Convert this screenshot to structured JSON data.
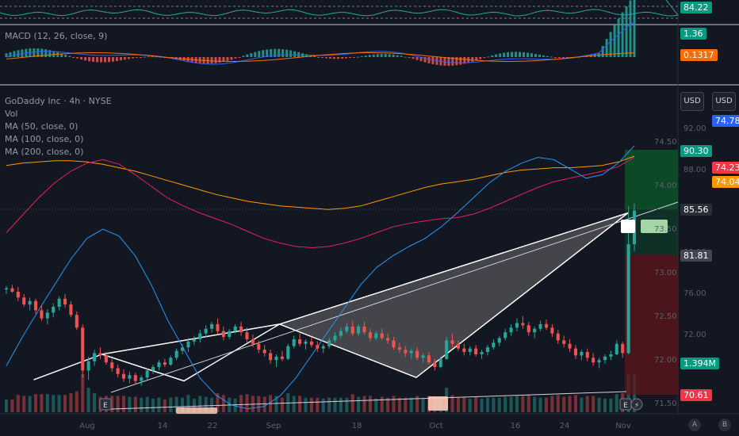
{
  "panes": {
    "rsi": {
      "value_label": "84.22"
    },
    "macd": {
      "title": "MACD (12, 26, close, 9)",
      "macd_label": "1.36",
      "signal_label": "0.1317"
    },
    "main": {
      "legend": [
        "GoDaddy Inc · 4h · NYSE",
        "Vol",
        "MA (50, close, 0)",
        "MA (100, close, 0)",
        "MA (200, close, 0)"
      ]
    }
  },
  "currency_buttons": [
    "USD",
    "USD"
  ],
  "right_axis_labels": [
    "92.00",
    "88.00",
    "84.00",
    "80.00",
    "76.00",
    "72.00"
  ],
  "left_axis_labels": [
    "74.50",
    "74.00",
    "73.50",
    "73.00",
    "72.50",
    "72.00",
    "71.50"
  ],
  "price_tags": [
    {
      "value": "74.78",
      "color": "#2962ff"
    },
    {
      "value": "90.30",
      "color": "#089981"
    },
    {
      "value": "74.23",
      "color": "#f23645"
    },
    {
      "value": "74.04",
      "color": "#ff9800"
    },
    {
      "value": "85.56",
      "color": "#2a2e39"
    },
    {
      "value": "81.81",
      "color": "#434651"
    },
    {
      "value": "1.394M",
      "color": "#089981"
    },
    {
      "value": "70.61",
      "color": "#f23645"
    }
  ],
  "x_axis_labels": [
    "Aug",
    "14",
    "22",
    "Sep",
    "18",
    "Oct",
    "16",
    "24",
    "Nov"
  ],
  "corner_buttons": [
    "A",
    "B"
  ],
  "colors": {
    "up": "#26a69a",
    "down": "#ef5350",
    "ma50": "#2196f3",
    "ma100": "#e91e63",
    "ma200": "#ff9800",
    "background": "#131722"
  },
  "chart_data": {
    "type": "candlestick",
    "symbol": "GoDaddy Inc",
    "timeframe": "4h",
    "exchange": "NYSE",
    "price_axis_range": [
      68,
      94
    ],
    "candles": [
      [
        78.6,
        78.9,
        78.2,
        78.7
      ],
      [
        78.7,
        79.0,
        78.3,
        78.4
      ],
      [
        78.4,
        78.8,
        77.6,
        77.9
      ],
      [
        77.9,
        78.2,
        77.1,
        77.3
      ],
      [
        77.3,
        77.9,
        76.8,
        77.6
      ],
      [
        77.6,
        77.8,
        76.5,
        76.8
      ],
      [
        76.8,
        77.2,
        75.9,
        76.1
      ],
      [
        76.1,
        76.9,
        75.6,
        76.6
      ],
      [
        76.6,
        77.4,
        76.2,
        77.1
      ],
      [
        77.1,
        78.0,
        76.8,
        77.8
      ],
      [
        77.8,
        78.2,
        77.0,
        77.3
      ],
      [
        77.3,
        77.6,
        76.2,
        76.4
      ],
      [
        76.4,
        76.7,
        75.1,
        75.3
      ],
      [
        75.3,
        75.6,
        71.0,
        71.6
      ],
      [
        71.6,
        72.8,
        70.8,
        72.4
      ],
      [
        72.4,
        73.4,
        72.0,
        73.1
      ],
      [
        73.1,
        73.6,
        72.6,
        72.9
      ],
      [
        72.9,
        73.2,
        72.1,
        72.3
      ],
      [
        72.3,
        72.6,
        71.5,
        71.8
      ],
      [
        71.8,
        72.1,
        71.0,
        71.3
      ],
      [
        71.3,
        71.7,
        70.6,
        70.9
      ],
      [
        70.9,
        71.5,
        70.5,
        71.2
      ],
      [
        71.2,
        71.4,
        70.4,
        70.7
      ],
      [
        70.7,
        71.2,
        70.3,
        71.0
      ],
      [
        71.0,
        71.8,
        70.8,
        71.6
      ],
      [
        71.6,
        72.1,
        71.3,
        71.9
      ],
      [
        71.9,
        72.5,
        71.6,
        72.3
      ],
      [
        72.3,
        72.6,
        71.9,
        72.1
      ],
      [
        72.1,
        72.9,
        72.0,
        72.7
      ],
      [
        72.7,
        73.5,
        72.5,
        73.3
      ],
      [
        73.3,
        73.9,
        73.0,
        73.6
      ],
      [
        73.6,
        74.4,
        73.2,
        74.1
      ],
      [
        74.1,
        74.6,
        73.8,
        74.3
      ],
      [
        74.3,
        75.1,
        74.0,
        74.8
      ],
      [
        74.8,
        75.5,
        74.5,
        75.2
      ],
      [
        75.2,
        75.8,
        74.9,
        75.6
      ],
      [
        75.6,
        76.1,
        74.7,
        75.0
      ],
      [
        75.0,
        75.4,
        74.2,
        74.5
      ],
      [
        74.5,
        75.2,
        74.3,
        75.0
      ],
      [
        75.0,
        75.6,
        74.8,
        75.4
      ],
      [
        75.4,
        75.8,
        74.6,
        74.9
      ],
      [
        74.9,
        75.3,
        74.0,
        74.3
      ],
      [
        74.3,
        74.7,
        73.6,
        73.9
      ],
      [
        73.9,
        74.2,
        73.1,
        73.4
      ],
      [
        73.4,
        73.8,
        72.8,
        73.1
      ],
      [
        73.1,
        73.4,
        72.2,
        72.5
      ],
      [
        72.5,
        73.0,
        71.9,
        72.8
      ],
      [
        72.8,
        73.3,
        72.4,
        72.6
      ],
      [
        72.6,
        73.9,
        72.5,
        73.7
      ],
      [
        73.7,
        74.6,
        73.5,
        74.3
      ],
      [
        74.3,
        74.8,
        73.7,
        73.9
      ],
      [
        73.9,
        74.3,
        73.4,
        74.1
      ],
      [
        74.1,
        74.5,
        73.6,
        73.8
      ],
      [
        73.8,
        74.1,
        73.2,
        73.5
      ],
      [
        73.5,
        73.9,
        73.1,
        73.7
      ],
      [
        73.7,
        74.4,
        73.5,
        74.2
      ],
      [
        74.2,
        74.9,
        74.0,
        74.6
      ],
      [
        74.6,
        75.3,
        74.4,
        75.0
      ],
      [
        75.0,
        75.7,
        74.8,
        75.4
      ],
      [
        75.4,
        75.9,
        74.6,
        74.8
      ],
      [
        74.8,
        75.6,
        74.6,
        75.4
      ],
      [
        75.4,
        75.8,
        74.7,
        74.9
      ],
      [
        74.9,
        75.2,
        74.1,
        74.4
      ],
      [
        74.4,
        75.0,
        74.2,
        74.8
      ],
      [
        74.8,
        75.2,
        74.2,
        74.4
      ],
      [
        74.4,
        74.8,
        73.9,
        74.2
      ],
      [
        74.2,
        74.5,
        73.4,
        73.6
      ],
      [
        73.6,
        74.0,
        73.1,
        73.4
      ],
      [
        73.4,
        73.7,
        72.8,
        73.1
      ],
      [
        73.1,
        73.5,
        72.6,
        73.3
      ],
      [
        73.3,
        73.6,
        72.5,
        72.7
      ],
      [
        72.7,
        73.1,
        72.3,
        72.9
      ],
      [
        72.9,
        73.2,
        72.1,
        72.3
      ],
      [
        72.3,
        72.6,
        71.6,
        71.9
      ],
      [
        71.9,
        72.8,
        71.8,
        72.6
      ],
      [
        72.6,
        74.5,
        72.5,
        74.2
      ],
      [
        74.2,
        74.8,
        73.6,
        73.9
      ],
      [
        73.9,
        74.2,
        73.3,
        73.5
      ],
      [
        73.5,
        73.9,
        72.9,
        73.2
      ],
      [
        73.2,
        73.7,
        72.9,
        73.5
      ],
      [
        73.5,
        73.8,
        72.8,
        73.0
      ],
      [
        73.0,
        73.4,
        72.6,
        73.2
      ],
      [
        73.2,
        73.8,
        72.9,
        73.6
      ],
      [
        73.6,
        74.3,
        73.4,
        74.0
      ],
      [
        74.0,
        74.6,
        73.7,
        74.4
      ],
      [
        74.4,
        75.2,
        74.2,
        74.9
      ],
      [
        74.9,
        75.6,
        74.6,
        75.3
      ],
      [
        75.3,
        76.1,
        75.0,
        75.7
      ],
      [
        75.7,
        76.3,
        75.2,
        75.5
      ],
      [
        75.5,
        75.8,
        74.6,
        74.9
      ],
      [
        74.9,
        75.4,
        74.4,
        75.2
      ],
      [
        75.2,
        75.9,
        75.0,
        75.6
      ],
      [
        75.6,
        76.0,
        75.1,
        75.3
      ],
      [
        75.3,
        75.6,
        74.5,
        74.8
      ],
      [
        74.8,
        75.1,
        73.9,
        74.2
      ],
      [
        74.2,
        74.6,
        73.6,
        73.9
      ],
      [
        73.9,
        74.3,
        73.2,
        73.5
      ],
      [
        73.5,
        73.8,
        72.6,
        72.9
      ],
      [
        72.9,
        73.4,
        72.5,
        73.2
      ],
      [
        73.2,
        73.5,
        72.4,
        72.7
      ],
      [
        72.7,
        73.1,
        72.0,
        72.3
      ],
      [
        72.3,
        72.7,
        71.8,
        72.5
      ],
      [
        72.5,
        73.0,
        72.2,
        72.8
      ],
      [
        72.8,
        73.3,
        72.5,
        73.0
      ],
      [
        73.0,
        74.2,
        72.9,
        73.9
      ],
      [
        73.9,
        74.1,
        72.7,
        73.1
      ],
      [
        73.1,
        85.8,
        73.0,
        82.5
      ],
      [
        82.5,
        86.0,
        81.9,
        85.4
      ]
    ],
    "ma50": [
      72.0,
      74.5,
      76.8,
      79.0,
      81.2,
      83.0,
      83.8,
      83.2,
      81.5,
      79.0,
      76.0,
      73.5,
      71.0,
      69.5,
      68.6,
      68.3,
      68.5,
      69.4,
      71.0,
      73.0,
      75.0,
      77.0,
      79.0,
      80.5,
      81.5,
      82.3,
      83.0,
      84.0,
      85.2,
      86.5,
      87.8,
      88.8,
      89.5,
      90.0,
      89.8,
      89.0,
      88.2,
      88.5,
      89.5,
      91.0
    ],
    "ma100": [
      83.5,
      85.0,
      86.5,
      87.8,
      88.8,
      89.5,
      89.8,
      89.4,
      88.5,
      87.5,
      86.5,
      85.8,
      85.2,
      84.7,
      84.2,
      83.6,
      83.0,
      82.6,
      82.3,
      82.2,
      82.3,
      82.6,
      83.0,
      83.5,
      84.0,
      84.3,
      84.5,
      84.7,
      84.8,
      85.1,
      85.6,
      86.2,
      86.8,
      87.4,
      87.9,
      88.2,
      88.5,
      88.8,
      89.2,
      90.0
    ],
    "ma200": [
      89.3,
      89.5,
      89.6,
      89.7,
      89.7,
      89.6,
      89.4,
      89.1,
      88.8,
      88.4,
      88.0,
      87.6,
      87.2,
      86.8,
      86.5,
      86.2,
      86.0,
      85.8,
      85.7,
      85.6,
      85.5,
      85.6,
      85.8,
      86.2,
      86.6,
      87.0,
      87.4,
      87.7,
      87.9,
      88.1,
      88.4,
      88.7,
      88.9,
      89.0,
      89.1,
      89.1,
      89.2,
      89.3,
      89.6,
      90.1
    ],
    "pattern_points": [
      [
        4,
        70.8
      ],
      [
        14,
        73.0
      ],
      [
        26,
        70.7
      ],
      [
        40,
        75.6
      ],
      [
        60,
        71.0
      ],
      [
        91,
        85.2
      ]
    ],
    "position": {
      "entry": 85.56,
      "target": 90.3,
      "stop": 81.81
    },
    "last": {
      "price": 85.56,
      "volume": "1.394M",
      "low_tag": 70.61
    }
  }
}
